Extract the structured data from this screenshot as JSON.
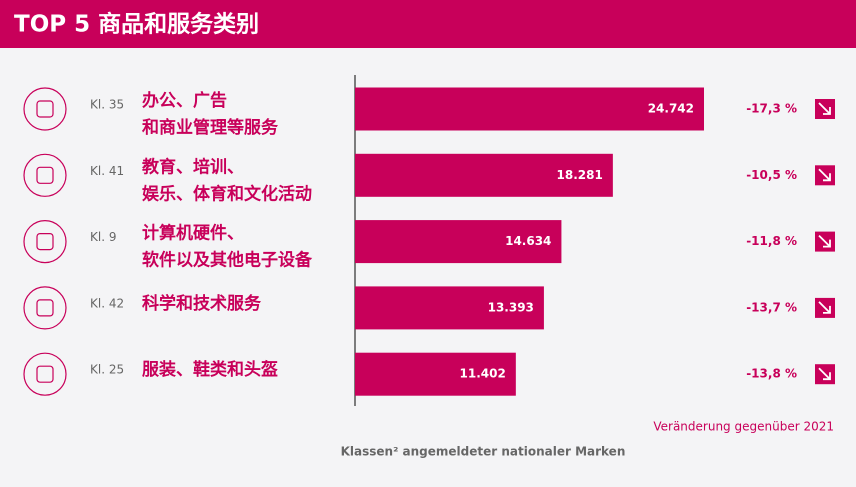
{
  "chart_data": {
    "type": "bar",
    "title": "TOP 5 商品和服务类别",
    "classes": [
      "Kl. 35",
      "Kl. 41",
      "Kl. 9",
      "Kl. 42",
      "Kl. 25"
    ],
    "categories": [
      [
        "办公、广告",
        "和商业管理等服务"
      ],
      [
        "教育、培训、",
        "娱乐、体育和文化活动"
      ],
      [
        "计算机硬件、",
        "软件以及其他电子设备"
      ],
      [
        "科学和技术服务"
      ],
      [
        "服装、鞋类和头盔"
      ]
    ],
    "values": [
      24742,
      18281,
      14634,
      13393,
      11402
    ],
    "value_labels": [
      "24.742",
      "18.281",
      "14.634",
      "13.393",
      "11.402"
    ],
    "color": "#c8005a",
    "changes": {
      "title": "Veränderung gegenüber 2021",
      "values": [
        -17.3,
        -10.5,
        -11.8,
        -13.7,
        -13.8
      ],
      "value_labels": [
        "-17,3 %",
        "-10,5 %",
        "-11,8 %",
        "-13,7 %",
        "-13,8 %"
      ]
    },
    "x_label": "Klassen² angemeldeter nationaler Marken"
  }
}
